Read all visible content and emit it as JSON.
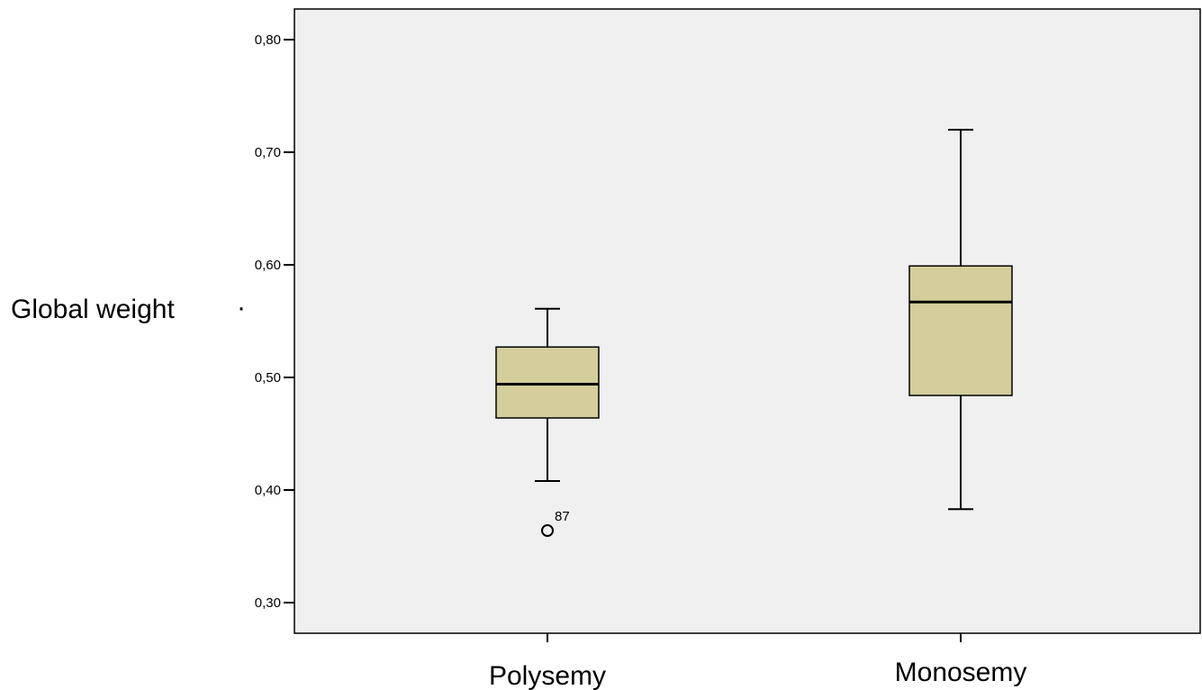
{
  "chart_data": {
    "type": "boxplot",
    "title": "",
    "ylabel": "Global weight",
    "ylabel_marker": "·",
    "xlabel": "",
    "ylim": [
      0.275,
      0.83
    ],
    "yticks": [
      0.3,
      0.4,
      0.5,
      0.6,
      0.7,
      0.8
    ],
    "ytick_labels": [
      "0,30",
      "0,40",
      "0,50",
      "0,60",
      "0,70",
      "0,80"
    ],
    "grid": false,
    "legend": "none",
    "categories": [
      "Polysemy",
      "Monosemy"
    ],
    "boxes": [
      {
        "category": "Polysemy",
        "whisker_low": 0.408,
        "q1": 0.464,
        "median": 0.494,
        "q3": 0.527,
        "whisker_high": 0.561,
        "outliers": [
          {
            "value": 0.364,
            "label": "87"
          }
        ]
      },
      {
        "category": "Monosemy",
        "whisker_low": 0.383,
        "q1": 0.484,
        "median": 0.567,
        "q3": 0.599,
        "whisker_high": 0.72,
        "outliers": []
      }
    ],
    "colors": {
      "plot_background": "#f0f0f0",
      "box_fill": "#d3ce9b",
      "line": "#000000"
    }
  }
}
